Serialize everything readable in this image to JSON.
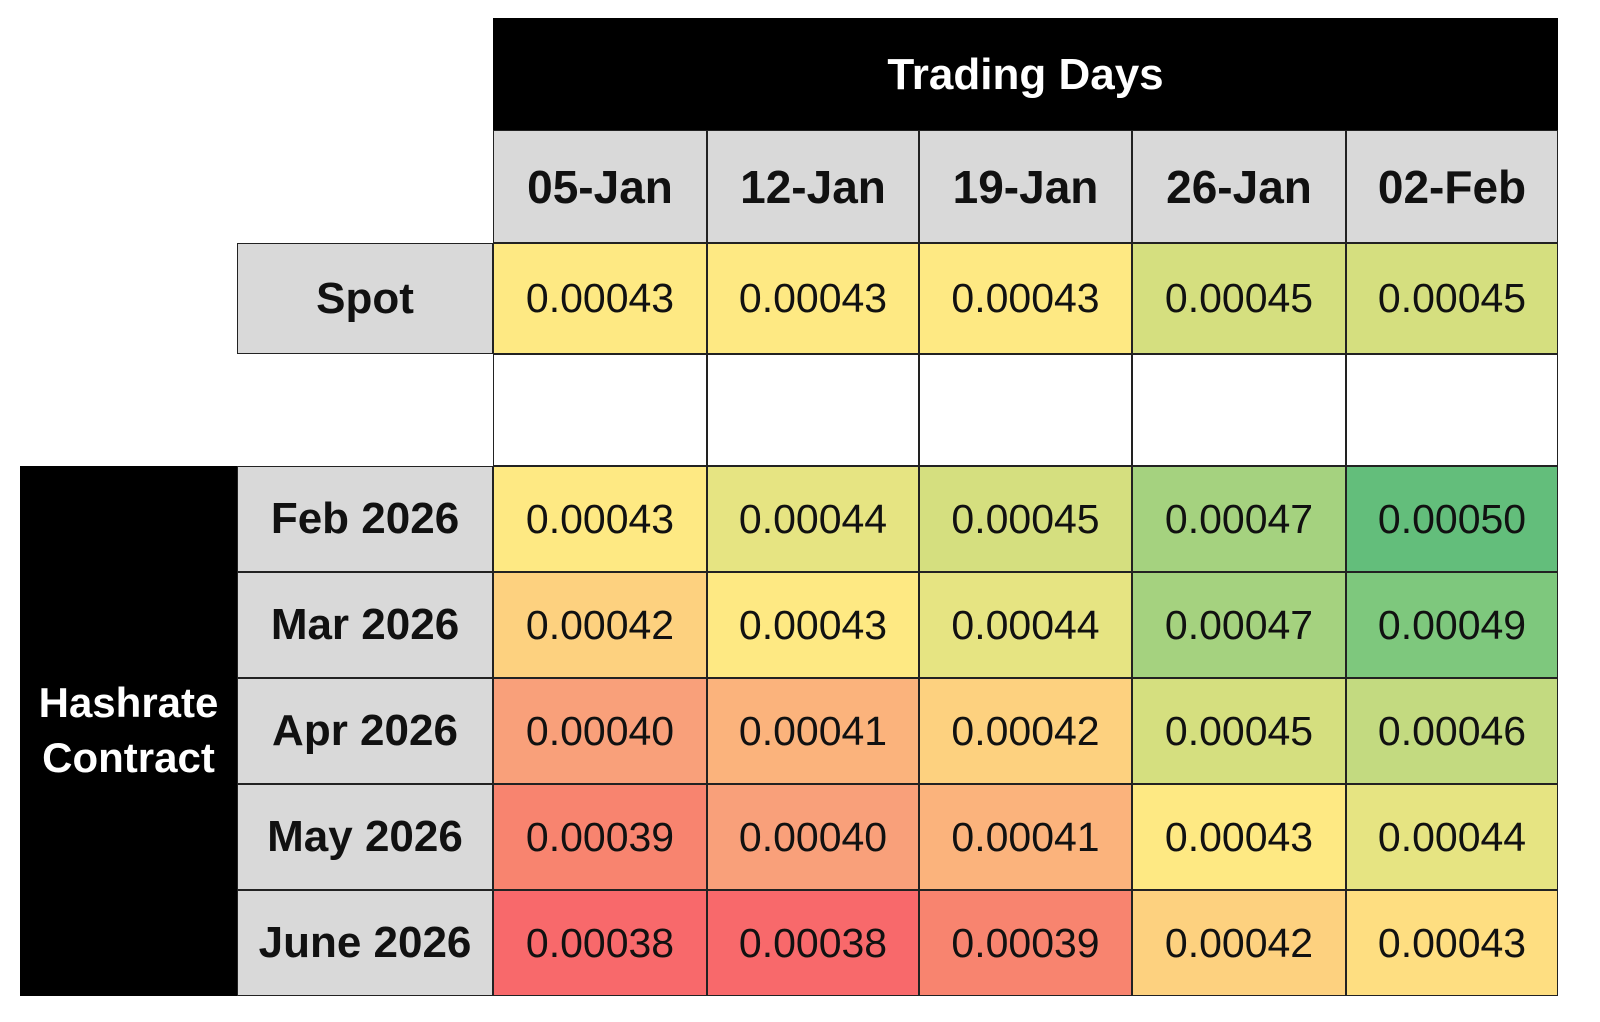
{
  "table": {
    "title": "Trading Days",
    "columns": [
      "05-Jan",
      "12-Jan",
      "19-Jan",
      "26-Jan",
      "02-Feb"
    ],
    "spot": {
      "label": "Spot",
      "values": [
        "0.00043",
        "0.00043",
        "0.00043",
        "0.00045",
        "0.00045"
      ],
      "colors": [
        "#fee983",
        "#fee983",
        "#fee983",
        "#d5df7f",
        "#d5df7f"
      ]
    },
    "group_label": "Hashrate Contract",
    "rows": [
      {
        "label": "Feb 2026",
        "values": [
          "0.00043",
          "0.00044",
          "0.00045",
          "0.00047",
          "0.00050"
        ],
        "colors": [
          "#fee983",
          "#e6e482",
          "#d5df7f",
          "#a5d27f",
          "#63be7b"
        ]
      },
      {
        "label": "Mar 2026",
        "values": [
          "0.00042",
          "0.00043",
          "0.00044",
          "0.00047",
          "0.00049"
        ],
        "colors": [
          "#fdd17f",
          "#fee983",
          "#e6e482",
          "#a5d27f",
          "#7ec87d"
        ]
      },
      {
        "label": "Apr 2026",
        "values": [
          "0.00040",
          "0.00041",
          "0.00042",
          "0.00045",
          "0.00046"
        ],
        "colors": [
          "#f9a07a",
          "#fbb37c",
          "#fdd17f",
          "#d5df7f",
          "#c3da80"
        ]
      },
      {
        "label": "May 2026",
        "values": [
          "0.00039",
          "0.00040",
          "0.00041",
          "0.00043",
          "0.00044"
        ],
        "colors": [
          "#f8846f",
          "#f9a07a",
          "#fbb37c",
          "#fee983",
          "#e6e482"
        ]
      },
      {
        "label": "June 2026",
        "values": [
          "0.00038",
          "0.00038",
          "0.00039",
          "0.00042",
          "0.00043"
        ],
        "colors": [
          "#f8696b",
          "#f8696b",
          "#f8846f",
          "#fdd17f",
          "#fede81"
        ]
      }
    ]
  }
}
